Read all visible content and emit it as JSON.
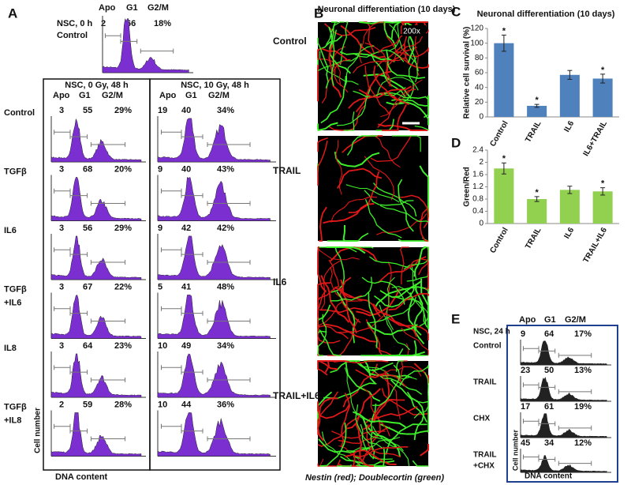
{
  "panels": {
    "a": {
      "label": "A",
      "top": {
        "title": "NSC, 0 h",
        "row_label": "Control",
        "headers": [
          "Apo",
          "G1",
          "G2/M"
        ],
        "values": [
          "2",
          "66",
          "18%"
        ]
      },
      "columns": [
        {
          "title": "NSC, 0 Gy, 48 h",
          "headers": [
            "Apo",
            "G1",
            "G2/M"
          ]
        },
        {
          "title": "NSC, 10 Gy, 48 h",
          "headers": [
            "Apo",
            "G1",
            "G2/M"
          ]
        }
      ],
      "rows": [
        {
          "label": [
            "Control"
          ],
          "left": [
            "3",
            "55",
            "29%"
          ],
          "right": [
            "19",
            "40",
            "34%"
          ]
        },
        {
          "label": [
            "TGFβ"
          ],
          "left": [
            "3",
            "68",
            "20%"
          ],
          "right": [
            "9",
            "40",
            "43%"
          ]
        },
        {
          "label": [
            "IL6"
          ],
          "left": [
            "3",
            "56",
            "29%"
          ],
          "right": [
            "9",
            "42",
            "42%"
          ]
        },
        {
          "label": [
            "TGFβ",
            "+IL6"
          ],
          "left": [
            "3",
            "67",
            "22%"
          ],
          "right": [
            "5",
            "41",
            "48%"
          ]
        },
        {
          "label": [
            "IL8"
          ],
          "left": [
            "3",
            "64",
            "23%"
          ],
          "right": [
            "10",
            "49",
            "34%"
          ]
        },
        {
          "label": [
            "TGFβ",
            "+IL8"
          ],
          "left": [
            "2",
            "59",
            "28%"
          ],
          "right": [
            "10",
            "44",
            "36%"
          ]
        }
      ],
      "y_label": "Cell number",
      "x_label": "DNA content"
    },
    "b": {
      "label": "B",
      "title": "Neuronal differentiation  (10 days)",
      "magnification": "200x",
      "rows": [
        "Control",
        "TRAIL",
        "IL6",
        "TRAIL+IL6"
      ],
      "caption": "Nestin (red); Doublecortin (green)"
    },
    "e": {
      "label": "E",
      "title": "NSC, 24 h",
      "headers": [
        "Apo",
        "G1",
        "G2/M"
      ],
      "rows": [
        {
          "label": [
            "Control"
          ],
          "values": [
            "9",
            "64",
            "17%"
          ]
        },
        {
          "label": [
            "TRAIL"
          ],
          "values": [
            "23",
            "50",
            "13%"
          ]
        },
        {
          "label": [
            "CHX"
          ],
          "values": [
            "17",
            "61",
            "19%"
          ]
        },
        {
          "label": [
            "TRAIL",
            "+CHX"
          ],
          "values": [
            "45",
            "34",
            "12%"
          ]
        }
      ],
      "y_label": "Cell number",
      "x_label": "DNA content"
    }
  },
  "chart_data": [
    {
      "type": "bar",
      "panel": "C",
      "title": "Neuronal differentiation  (10 days)",
      "y_label": "Relative cell survival (%)",
      "categories": [
        "Control",
        "TRAIL",
        "IL6",
        "IL6+TRAIL"
      ],
      "values": [
        100,
        15,
        57,
        52
      ],
      "errors": [
        11,
        2,
        6,
        6
      ],
      "value_labels": [
        "*",
        "*",
        null,
        "*"
      ],
      "color": "#4f81bd",
      "ylim": [
        0,
        120
      ],
      "yticks": [
        0,
        20,
        40,
        60,
        80,
        100,
        120
      ]
    },
    {
      "type": "bar",
      "panel": "D",
      "y_label": "Green/Red",
      "categories": [
        "Control",
        "TRAIL",
        "IL6",
        "TRAIL+IL6"
      ],
      "values": [
        1.8,
        0.8,
        1.1,
        1.05
      ],
      "errors": [
        0.18,
        0.08,
        0.12,
        0.12
      ],
      "value_labels": [
        "*",
        "*",
        null,
        "*"
      ],
      "color": "#92d050",
      "ylim": [
        0,
        2.4
      ],
      "yticks": [
        0,
        0.4,
        0.8,
        1.2,
        1.6,
        2,
        2.4
      ]
    }
  ]
}
